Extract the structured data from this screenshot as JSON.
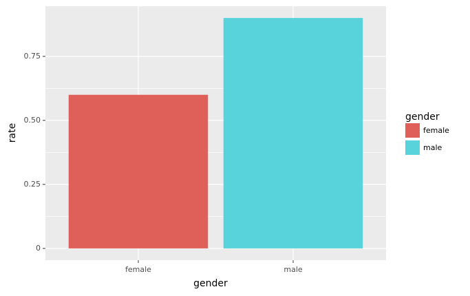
{
  "chart_data": {
    "type": "bar",
    "x_label": "gender",
    "y_label": "rate",
    "categories": [
      "female",
      "male"
    ],
    "values": [
      0.6,
      0.9
    ],
    "colors": [
      "#de6058",
      "#58d3db"
    ],
    "legend_title": "gender",
    "legend_position": "right",
    "ylim": [
      -0.046,
      0.946
    ],
    "yticks": [
      0,
      0.25,
      {
        "value": 0.5,
        "label": "0.50"
      },
      0.75
    ],
    "grid": true
  }
}
